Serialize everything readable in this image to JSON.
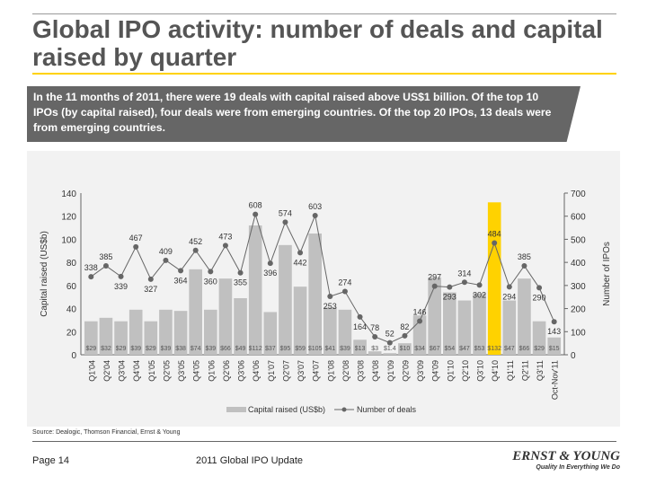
{
  "title": "Global IPO activity: number of deals and capital raised by quarter",
  "callout": "In the 11 months of 2011, there were 19 deals with capital raised above US$1 billion. Of the top 10 IPOs (by capital raised), four deals were from emerging countries. Of the top 20 IPOs, 13 deals were from emerging countries.",
  "source": "Source: Dealogic, Thomson Financial, Ernst & Young",
  "footer": {
    "page": "Page 14",
    "doc": "2011 Global IPO Update",
    "logo": "ERNST & YOUNG",
    "tagline": "Quality In Everything We Do"
  },
  "colors": {
    "bar": "#c0c0c0",
    "highlight": "#ffd200",
    "line": "#666666",
    "accent": "#ffd200"
  },
  "chart_data": {
    "type": "bar+line",
    "categories": [
      "Q1'04",
      "Q2'04",
      "Q3'04",
      "Q4'04",
      "Q1'05",
      "Q2'05",
      "Q3'05",
      "Q4'05",
      "Q1'06",
      "Q2'06",
      "Q3'06",
      "Q4'06",
      "Q1'07",
      "Q2'07",
      "Q3'07",
      "Q4'07",
      "Q1'08",
      "Q2'08",
      "Q3'08",
      "Q4'08",
      "Q1'09",
      "Q2'09",
      "Q3'09",
      "Q4'09",
      "Q1'10",
      "Q2'10",
      "Q3'10",
      "Q4'10",
      "Q1'11",
      "Q2'11",
      "Q3'11",
      "Oct-Nov'11"
    ],
    "series": [
      {
        "name": "Capital raised (US$b)",
        "type": "bar",
        "axis": "left",
        "values": [
          29,
          32,
          29,
          39,
          29,
          39,
          38,
          74,
          39,
          66,
          49,
          112,
          37,
          95,
          59,
          105,
          41,
          39,
          13,
          3,
          1.4,
          10,
          34,
          67,
          54,
          47,
          53,
          132,
          47,
          66,
          29,
          15
        ],
        "labels": [
          "$29",
          "$32",
          "$29",
          "$39",
          "$29",
          "$39",
          "$38",
          "$74",
          "$39",
          "$66",
          "$49",
          "$112",
          "$37",
          "$95",
          "$59",
          "$105",
          "$41",
          "$39",
          "$13",
          "$3",
          "$1.4",
          "$10",
          "$34",
          "$67",
          "$54",
          "$47",
          "$53",
          "$132",
          "$47",
          "$66",
          "$29",
          "$15"
        ],
        "highlight_index": 27
      },
      {
        "name": "Number of deals",
        "type": "line",
        "axis": "right",
        "values": [
          338,
          385,
          339,
          467,
          327,
          409,
          364,
          452,
          360,
          473,
          355,
          608,
          396,
          574,
          442,
          603,
          253,
          274,
          164,
          78,
          52,
          82,
          146,
          297,
          293,
          314,
          302,
          484,
          294,
          385,
          290,
          143
        ]
      }
    ],
    "ylabel": "Capital raised (US$b)",
    "ylim": [
      0,
      140
    ],
    "yticks": [
      0,
      20,
      40,
      60,
      80,
      100,
      120,
      140
    ],
    "y2label": "Number of IPOs",
    "y2lim": [
      0,
      700
    ],
    "y2ticks": [
      0,
      100,
      200,
      300,
      400,
      500,
      600,
      700
    ],
    "legend": "bottom",
    "grid": false
  }
}
